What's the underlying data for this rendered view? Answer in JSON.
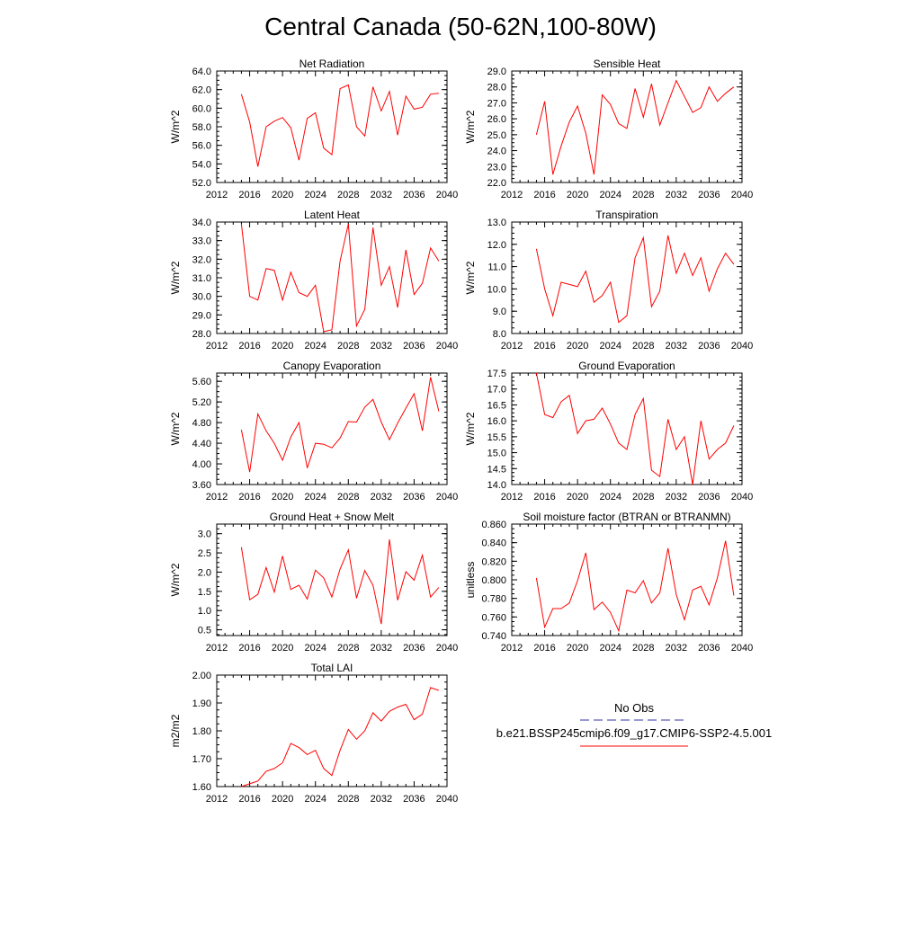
{
  "title": "Central Canada (50-62N,100-80W)",
  "legend": {
    "obs_label": "No Obs",
    "obs_color": "#3333aa",
    "model_label": "b.e21.BSSP245cmip6.f09_g17.CMIP6-SSP2-4.5.001",
    "model_color": "#ff0000"
  },
  "chart_data": [
    {
      "type": "line",
      "title": "Net Radiation",
      "ylabel": "W/m^2",
      "xlim": [
        2012,
        2040
      ],
      "ylim": [
        52.0,
        64.0
      ],
      "xticks": [
        "2012",
        "2016",
        "2020",
        "2024",
        "2028",
        "2032",
        "2036",
        "2040"
      ],
      "yticks": [
        "52.0",
        "54.0",
        "56.0",
        "58.0",
        "60.0",
        "62.0",
        "64.0"
      ],
      "x": [
        2015,
        2016,
        2017,
        2018,
        2019,
        2020,
        2021,
        2022,
        2023,
        2024,
        2025,
        2026,
        2027,
        2028,
        2029,
        2030,
        2031,
        2032,
        2033,
        2034,
        2035,
        2036,
        2037,
        2038,
        2039
      ],
      "series": [
        {
          "values": [
            61.5,
            58.5,
            53.7,
            58.0,
            58.6,
            59.0,
            57.9,
            54.4,
            58.9,
            59.5,
            55.7,
            55.0,
            62.1,
            62.5,
            58.0,
            57.0,
            62.3,
            59.7,
            61.8,
            57.1,
            61.3,
            59.9,
            60.1,
            61.5,
            61.6
          ]
        }
      ]
    },
    {
      "type": "line",
      "title": "Sensible Heat",
      "ylabel": "W/m^2",
      "xlim": [
        2012,
        2040
      ],
      "ylim": [
        22.0,
        29.0
      ],
      "xticks": [
        "2012",
        "2016",
        "2020",
        "2024",
        "2028",
        "2032",
        "2036",
        "2040"
      ],
      "yticks": [
        "22.0",
        "23.0",
        "24.0",
        "25.0",
        "26.0",
        "27.0",
        "28.0",
        "29.0"
      ],
      "x": [
        2015,
        2016,
        2017,
        2018,
        2019,
        2020,
        2021,
        2022,
        2023,
        2024,
        2025,
        2026,
        2027,
        2028,
        2029,
        2030,
        2031,
        2032,
        2033,
        2034,
        2035,
        2036,
        2037,
        2038,
        2039
      ],
      "series": [
        {
          "values": [
            25.0,
            27.1,
            22.5,
            24.3,
            25.8,
            26.8,
            25.1,
            22.5,
            27.5,
            26.9,
            25.7,
            25.4,
            27.9,
            26.1,
            28.2,
            25.6,
            27.0,
            28.4,
            27.4,
            26.4,
            26.7,
            28.0,
            27.1,
            27.6,
            28.0
          ]
        }
      ]
    },
    {
      "type": "line",
      "title": "Latent Heat",
      "ylabel": "W/m^2",
      "xlim": [
        2012,
        2040
      ],
      "ylim": [
        28.0,
        34.0
      ],
      "xticks": [
        "2012",
        "2016",
        "2020",
        "2024",
        "2028",
        "2032",
        "2036",
        "2040"
      ],
      "yticks": [
        "28.0",
        "29.0",
        "30.0",
        "31.0",
        "32.0",
        "33.0",
        "34.0"
      ],
      "x": [
        2015,
        2016,
        2017,
        2018,
        2019,
        2020,
        2021,
        2022,
        2023,
        2024,
        2025,
        2026,
        2027,
        2028,
        2029,
        2030,
        2031,
        2032,
        2033,
        2034,
        2035,
        2036,
        2037,
        2038,
        2039
      ],
      "series": [
        {
          "values": [
            33.9,
            30.0,
            29.8,
            31.5,
            31.4,
            29.8,
            31.3,
            30.2,
            30.0,
            30.6,
            28.1,
            28.2,
            31.9,
            33.9,
            28.4,
            29.3,
            33.7,
            30.6,
            31.6,
            29.4,
            32.5,
            30.1,
            30.7,
            32.6,
            31.9
          ]
        }
      ]
    },
    {
      "type": "line",
      "title": "Transpiration",
      "ylabel": "W/m^2",
      "xlim": [
        2012,
        2040
      ],
      "ylim": [
        8.0,
        13.0
      ],
      "xticks": [
        "2012",
        "2016",
        "2020",
        "2024",
        "2028",
        "2032",
        "2036",
        "2040"
      ],
      "yticks": [
        "8.0",
        "9.0",
        "10.0",
        "11.0",
        "12.0",
        "13.0"
      ],
      "x": [
        2015,
        2016,
        2017,
        2018,
        2019,
        2020,
        2021,
        2022,
        2023,
        2024,
        2025,
        2026,
        2027,
        2028,
        2029,
        2030,
        2031,
        2032,
        2033,
        2034,
        2035,
        2036,
        2037,
        2038,
        2039
      ],
      "series": [
        {
          "values": [
            11.8,
            10.0,
            8.8,
            10.3,
            10.2,
            10.1,
            10.8,
            9.4,
            9.7,
            10.3,
            8.5,
            8.8,
            11.4,
            12.3,
            9.2,
            9.9,
            12.4,
            10.7,
            11.6,
            10.6,
            11.4,
            9.9,
            10.9,
            11.6,
            11.1
          ]
        }
      ]
    },
    {
      "type": "line",
      "title": "Canopy Evaporation",
      "ylabel": "W/m^2",
      "xlim": [
        2012,
        2040
      ],
      "ylim": [
        3.6,
        5.76
      ],
      "xticks": [
        "2012",
        "2016",
        "2020",
        "2024",
        "2028",
        "2032",
        "2036",
        "2040"
      ],
      "yticks": [
        "3.60",
        "4.00",
        "4.40",
        "4.80",
        "5.20",
        "5.60"
      ],
      "x": [
        2015,
        2016,
        2017,
        2018,
        2019,
        2020,
        2021,
        2022,
        2023,
        2024,
        2025,
        2026,
        2027,
        2028,
        2029,
        2030,
        2031,
        2032,
        2033,
        2034,
        2035,
        2036,
        2037,
        2038,
        2039
      ],
      "series": [
        {
          "values": [
            4.66,
            3.84,
            4.97,
            4.64,
            4.4,
            4.07,
            4.52,
            4.8,
            3.92,
            4.4,
            4.38,
            4.31,
            4.5,
            4.82,
            4.81,
            5.1,
            5.25,
            4.81,
            4.47,
            4.79,
            5.08,
            5.36,
            4.64,
            5.68,
            5.02
          ]
        }
      ]
    },
    {
      "type": "line",
      "title": "Ground Evaporation",
      "ylabel": "W/m^2",
      "xlim": [
        2012,
        2040
      ],
      "ylim": [
        14.0,
        17.5
      ],
      "xticks": [
        "2012",
        "2016",
        "2020",
        "2024",
        "2028",
        "2032",
        "2036",
        "2040"
      ],
      "yticks": [
        "14.0",
        "14.5",
        "15.0",
        "15.5",
        "16.0",
        "16.5",
        "17.0",
        "17.5"
      ],
      "x": [
        2015,
        2016,
        2017,
        2018,
        2019,
        2020,
        2021,
        2022,
        2023,
        2024,
        2025,
        2026,
        2027,
        2028,
        2029,
        2030,
        2031,
        2032,
        2033,
        2034,
        2035,
        2036,
        2037,
        2038,
        2039
      ],
      "series": [
        {
          "values": [
            17.5,
            16.2,
            16.1,
            16.6,
            16.8,
            15.6,
            16.0,
            16.05,
            16.4,
            15.9,
            15.3,
            15.1,
            16.2,
            16.7,
            14.45,
            14.25,
            16.05,
            15.1,
            15.5,
            14.0,
            16.0,
            14.8,
            15.1,
            15.3,
            15.85
          ]
        }
      ]
    },
    {
      "type": "line",
      "title": "Ground Heat + Snow Melt",
      "ylabel": "W/m^2",
      "xlim": [
        2012,
        2040
      ],
      "ylim": [
        0.35,
        3.25
      ],
      "xticks": [
        "2012",
        "2016",
        "2020",
        "2024",
        "2028",
        "2032",
        "2036",
        "2040"
      ],
      "yticks": [
        "0.5",
        "1.0",
        "1.5",
        "2.0",
        "2.5",
        "3.0"
      ],
      "x": [
        2015,
        2016,
        2017,
        2018,
        2019,
        2020,
        2021,
        2022,
        2023,
        2024,
        2025,
        2026,
        2027,
        2028,
        2029,
        2030,
        2031,
        2032,
        2033,
        2034,
        2035,
        2036,
        2037,
        2038,
        2039
      ],
      "series": [
        {
          "values": [
            2.65,
            1.28,
            1.42,
            2.12,
            1.48,
            2.42,
            1.55,
            1.66,
            1.3,
            2.05,
            1.85,
            1.35,
            2.08,
            2.58,
            1.32,
            2.04,
            1.66,
            0.65,
            2.85,
            1.27,
            2.01,
            1.79,
            2.44,
            1.35,
            1.6
          ]
        }
      ]
    },
    {
      "type": "line",
      "title": "Soil moisture factor (BTRAN or BTRANMN)",
      "ylabel": "unitless",
      "xlim": [
        2012,
        2040
      ],
      "ylim": [
        0.74,
        0.86
      ],
      "xticks": [
        "2012",
        "2016",
        "2020",
        "2024",
        "2028",
        "2032",
        "2036",
        "2040"
      ],
      "yticks": [
        "0.740",
        "0.760",
        "0.780",
        "0.800",
        "0.820",
        "0.840",
        "0.860"
      ],
      "x": [
        2015,
        2016,
        2017,
        2018,
        2019,
        2020,
        2021,
        2022,
        2023,
        2024,
        2025,
        2026,
        2027,
        2028,
        2029,
        2030,
        2031,
        2032,
        2033,
        2034,
        2035,
        2036,
        2037,
        2038,
        2039
      ],
      "series": [
        {
          "values": [
            0.802,
            0.749,
            0.769,
            0.769,
            0.775,
            0.799,
            0.829,
            0.768,
            0.776,
            0.765,
            0.745,
            0.789,
            0.786,
            0.799,
            0.775,
            0.786,
            0.834,
            0.784,
            0.757,
            0.789,
            0.793,
            0.773,
            0.802,
            0.842,
            0.783
          ]
        }
      ]
    },
    {
      "type": "line",
      "title": "Total LAI",
      "ylabel": "m2/m2",
      "xlim": [
        2012,
        2040
      ],
      "ylim": [
        1.6,
        2.0
      ],
      "xticks": [
        "2012",
        "2016",
        "2020",
        "2024",
        "2028",
        "2032",
        "2036",
        "2040"
      ],
      "yticks": [
        "1.60",
        "1.70",
        "1.80",
        "1.90",
        "2.00"
      ],
      "x": [
        2015,
        2016,
        2017,
        2018,
        2019,
        2020,
        2021,
        2022,
        2023,
        2024,
        2025,
        2026,
        2027,
        2028,
        2029,
        2030,
        2031,
        2032,
        2033,
        2034,
        2035,
        2036,
        2037,
        2038,
        2039
      ],
      "series": [
        {
          "values": [
            1.6,
            1.61,
            1.62,
            1.655,
            1.665,
            1.685,
            1.755,
            1.74,
            1.715,
            1.73,
            1.665,
            1.64,
            1.73,
            1.805,
            1.77,
            1.8,
            1.865,
            1.835,
            1.87,
            1.885,
            1.895,
            1.84,
            1.86,
            1.955,
            1.945
          ]
        }
      ]
    }
  ]
}
